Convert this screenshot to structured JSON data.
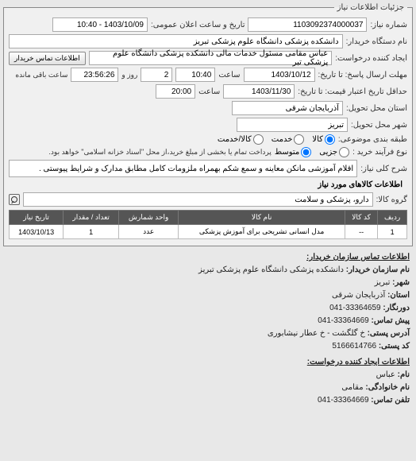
{
  "panel_title": "جزئیات اطلاعات نیاز",
  "fields": {
    "need_number_label": "شماره نیاز:",
    "need_number": "1103092374000037",
    "announce_label": "تاریخ و ساعت اعلان عمومی:",
    "announce_value": "1403/10/09 - 10:40",
    "buyer_name_label": "نام دستگاه خریدار:",
    "buyer_name": "دانشکده پزشکی دانشگاه علوم پزشکی تبریز",
    "creator_label": "ایجاد کننده درخواست:",
    "creator": "عباس مقامی مسئول خدمات مالی دانشکده پزشکی دانشگاه علوم پزشکی تبر",
    "contact_btn": "اطلاعات تماس خریدار",
    "deadline_label": "مهلت ارسال پاسخ: تا تاریخ:",
    "deadline_date": "1403/10/12",
    "time_label": "ساعت",
    "deadline_time": "10:40",
    "remain_days": "2",
    "remain_days_label": "روز و",
    "remain_time": "23:56:26",
    "remain_time_label": "ساعت باقی مانده",
    "validity_label": "حداقل تاریخ اعتبار قیمت: تا تاریخ:",
    "validity_date": "1403/11/30",
    "validity_time": "20:00",
    "province_label": "استان محل تحویل:",
    "province": "آذربایجان شرقی",
    "city_label": "شهر محل تحویل:",
    "city": "تبریز",
    "budget_label": "طبقه بندی موضوعی:",
    "radio_goods": "کالا",
    "radio_service": "خدمت",
    "radio_both": "کالا/خدمت",
    "process_label": "نوع فرآیند خرید :",
    "radio_partial": "جزیی",
    "radio_medium": "متوسط",
    "process_note": "پرداخت تمام یا بخشی از مبلغ خرید،از محل \"اسناد خزانه اسلامی\" خواهد بود.",
    "subject_label": "شرح کلی نیاز:",
    "subject": "اقلام آموزشی مانکن معاینه و سمع شکم بهمراه ملزومات کامل مطابق مدارک و شرایط پیوستی .",
    "items_title": "اطلاعات کالاهای مورد نیاز",
    "group_label": "گروه کالا:",
    "group_value": "دارو، پزشکی و سلامت"
  },
  "table": {
    "headers": [
      "ردیف",
      "کد کالا",
      "نام کالا",
      "واحد شمارش",
      "تعداد / مقدار",
      "تاریخ نیاز"
    ],
    "rows": [
      [
        "1",
        "--",
        "مدل انسانی تشریحی برای آموزش پزشکی",
        "عدد",
        "1",
        "1403/10/13"
      ]
    ]
  },
  "contact": {
    "buyer_hdr": "اطلاعات تماس سازمان خریدار:",
    "org_label": "نام سازمان خریدار:",
    "org": "دانشکده پزشکی دانشگاه علوم پزشکی تبریز",
    "city_label": "شهر:",
    "city": "تبریز",
    "province_label": "استان:",
    "province": "آذربایجان شرقی",
    "fax_label": "دورنگار:",
    "fax": "33364659-041",
    "phone_label": "پیش تماس:",
    "phone": "33364669-041",
    "address_label": "آدرس پستی:",
    "address": "خ گلگشت - خ عطار نیشابوری",
    "postal_label": "کد پستی:",
    "postal": "5166614766",
    "requester_hdr": "اطلاعات ایجاد کننده درخواست:",
    "fname_label": "نام:",
    "fname": "عباس",
    "lname_label": "نام خانوادگی:",
    "lname": "مقامی",
    "rphone_label": "تلفن تماس:",
    "rphone": "33364669-041"
  }
}
